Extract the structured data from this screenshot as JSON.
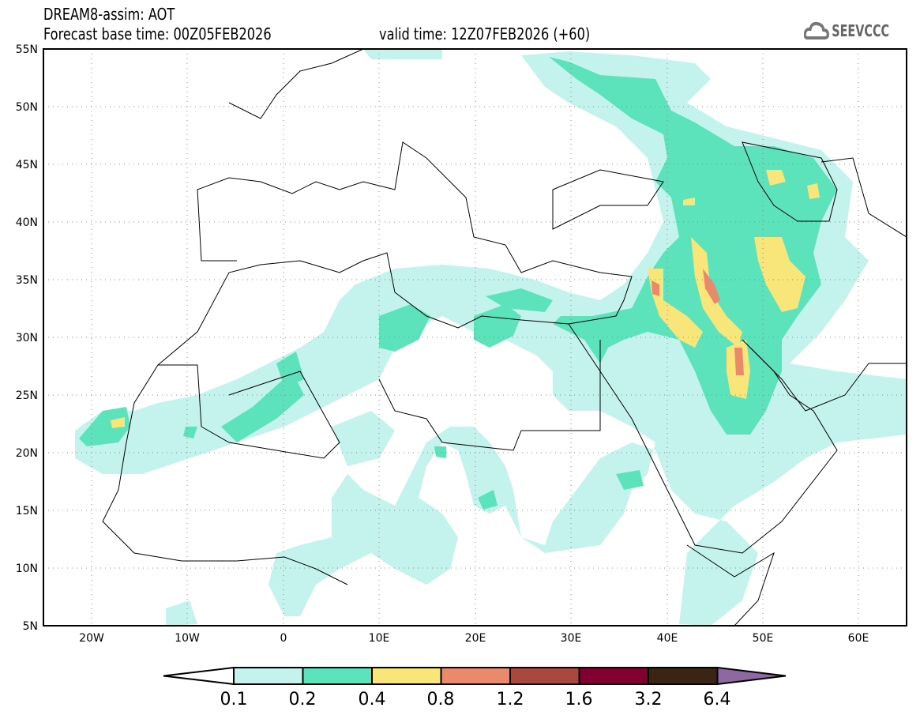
{
  "header": {
    "title": "DREAM8-assim: AOT",
    "base_time": "Forecast base time: 00Z05FEB2026",
    "valid_time": "valid time: 12Z07FEB2026 (+60)",
    "logo_text": "SEEVCCC"
  },
  "map": {
    "lon_range": [
      -25,
      65
    ],
    "lat_range": [
      5,
      55
    ],
    "lat_labels": [
      "55N",
      "50N",
      "45N",
      "40N",
      "35N",
      "30N",
      "25N",
      "20N",
      "15N",
      "10N",
      "5N"
    ],
    "lon_labels": [
      "20W",
      "10W",
      "0",
      "10E",
      "20E",
      "30E",
      "40E",
      "50E",
      "60E"
    ]
  },
  "legend": {
    "labels": [
      "0.1",
      "0.2",
      "0.4",
      "0.8",
      "1.2",
      "1.6",
      "3.2",
      "6.4"
    ],
    "colors": [
      "#ffffff",
      "#c4f2ec",
      "#5de3bc",
      "#f8e67a",
      "#e98a6a",
      "#a8483f",
      "#800030",
      "#3b2414",
      "#8e68a0"
    ]
  }
}
